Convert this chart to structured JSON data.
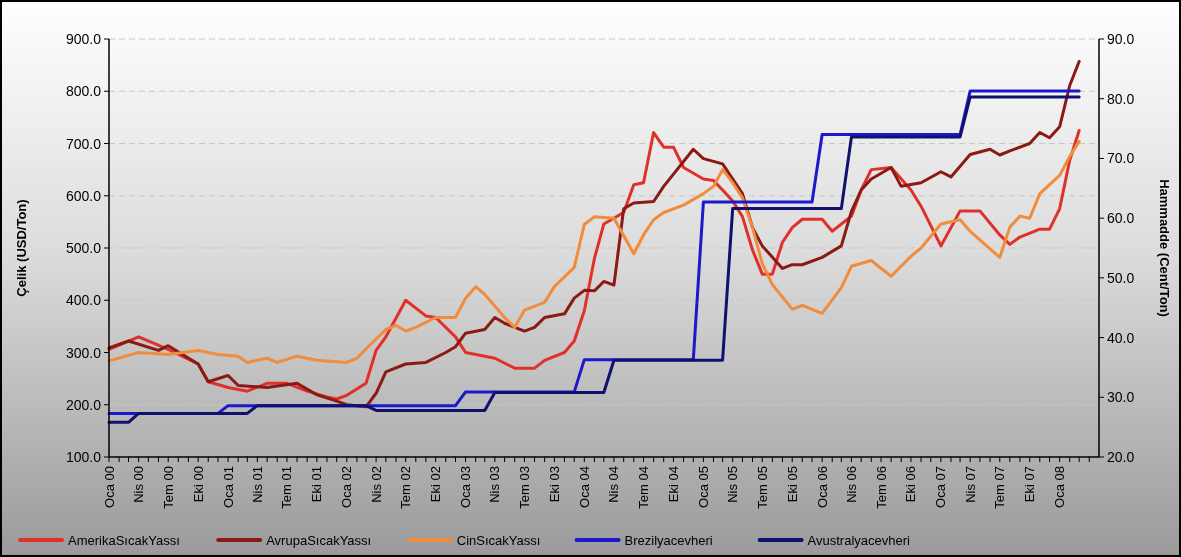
{
  "chart_data": {
    "type": "line",
    "ylabel": "Çelik (USD/Ton)",
    "y2label": "Hammadde (Cent/Ton)",
    "xlim": [
      "2000-01",
      "2008-05"
    ],
    "ylim": [
      100,
      900
    ],
    "y2lim": [
      20,
      90
    ],
    "yticks": [
      {
        "value": 100,
        "label": "100.0"
      },
      {
        "value": 200,
        "label": "200.0"
      },
      {
        "value": 300,
        "label": "300.0"
      },
      {
        "value": 400,
        "label": "400.0"
      },
      {
        "value": 500,
        "label": "500.0"
      },
      {
        "value": 600,
        "label": "600.0"
      },
      {
        "value": 700,
        "label": "700.0"
      },
      {
        "value": 800,
        "label": "800.0"
      },
      {
        "value": 900,
        "label": "900.0"
      }
    ],
    "y2ticks": [
      {
        "value": 20,
        "label": "20.0"
      },
      {
        "value": 30,
        "label": "30.0"
      },
      {
        "value": 40,
        "label": "40.0"
      },
      {
        "value": 50,
        "label": "50.0"
      },
      {
        "value": 60,
        "label": "60.0"
      },
      {
        "value": 70,
        "label": "70.0"
      },
      {
        "value": 80,
        "label": "80.0"
      },
      {
        "value": 90,
        "label": "90.0"
      }
    ],
    "xticks": [
      {
        "value": "2000-01",
        "label": "Oca 00"
      },
      {
        "value": "2000-02",
        "label": null
      },
      {
        "value": "2000-03",
        "label": null
      },
      {
        "value": "2000-04",
        "label": "Nis 00"
      },
      {
        "value": "2000-05",
        "label": null
      },
      {
        "value": "2000-06",
        "label": null
      },
      {
        "value": "2000-07",
        "label": "Tem 00"
      },
      {
        "value": "2000-08",
        "label": null
      },
      {
        "value": "2000-09",
        "label": null
      },
      {
        "value": "2000-10",
        "label": "Eki 00"
      },
      {
        "value": "2000-11",
        "label": null
      },
      {
        "value": "2000-12",
        "label": null
      },
      {
        "value": "2001-01",
        "label": "Oca 01"
      },
      {
        "value": "2001-02",
        "label": null
      },
      {
        "value": "2001-03",
        "label": null
      },
      {
        "value": "2001-04",
        "label": "Nis 01"
      },
      {
        "value": "2001-05",
        "label": null
      },
      {
        "value": "2001-06",
        "label": null
      },
      {
        "value": "2001-07",
        "label": "Tem 01"
      },
      {
        "value": "2001-08",
        "label": null
      },
      {
        "value": "2001-09",
        "label": null
      },
      {
        "value": "2001-10",
        "label": "Eki 01"
      },
      {
        "value": "2001-11",
        "label": null
      },
      {
        "value": "2001-12",
        "label": null
      },
      {
        "value": "2002-01",
        "label": "Oca 02"
      },
      {
        "value": "2002-02",
        "label": null
      },
      {
        "value": "2002-03",
        "label": null
      },
      {
        "value": "2002-04",
        "label": "Nis 02"
      },
      {
        "value": "2002-05",
        "label": null
      },
      {
        "value": "2002-06",
        "label": null
      },
      {
        "value": "2002-07",
        "label": "Tem 02"
      },
      {
        "value": "2002-08",
        "label": null
      },
      {
        "value": "2002-09",
        "label": null
      },
      {
        "value": "2002-10",
        "label": "Eki 02"
      },
      {
        "value": "2002-11",
        "label": null
      },
      {
        "value": "2002-12",
        "label": null
      },
      {
        "value": "2003-01",
        "label": "Oca 03"
      },
      {
        "value": "2003-02",
        "label": null
      },
      {
        "value": "2003-03",
        "label": null
      },
      {
        "value": "2003-04",
        "label": "Nis 03"
      },
      {
        "value": "2003-05",
        "label": null
      },
      {
        "value": "2003-06",
        "label": null
      },
      {
        "value": "2003-07",
        "label": "Tem 03"
      },
      {
        "value": "2003-08",
        "label": null
      },
      {
        "value": "2003-09",
        "label": null
      },
      {
        "value": "2003-10",
        "label": "Eki 03"
      },
      {
        "value": "2003-11",
        "label": null
      },
      {
        "value": "2003-12",
        "label": null
      },
      {
        "value": "2004-01",
        "label": "Oca 04"
      },
      {
        "value": "2004-02",
        "label": null
      },
      {
        "value": "2004-03",
        "label": null
      },
      {
        "value": "2004-04",
        "label": "Nis 04"
      },
      {
        "value": "2004-05",
        "label": null
      },
      {
        "value": "2004-06",
        "label": null
      },
      {
        "value": "2004-07",
        "label": "Tem 04"
      },
      {
        "value": "2004-08",
        "label": null
      },
      {
        "value": "2004-09",
        "label": null
      },
      {
        "value": "2004-10",
        "label": "Eki 04"
      },
      {
        "value": "2004-11",
        "label": null
      },
      {
        "value": "2004-12",
        "label": null
      },
      {
        "value": "2005-01",
        "label": "Oca 05"
      },
      {
        "value": "2005-02",
        "label": null
      },
      {
        "value": "2005-03",
        "label": null
      },
      {
        "value": "2005-04",
        "label": "Nis 05"
      },
      {
        "value": "2005-05",
        "label": null
      },
      {
        "value": "2005-06",
        "label": null
      },
      {
        "value": "2005-07",
        "label": "Tem 05"
      },
      {
        "value": "2005-08",
        "label": null
      },
      {
        "value": "2005-09",
        "label": null
      },
      {
        "value": "2005-10",
        "label": "Eki 05"
      },
      {
        "value": "2005-11",
        "label": null
      },
      {
        "value": "2005-12",
        "label": null
      },
      {
        "value": "2006-01",
        "label": "Oca 06"
      },
      {
        "value": "2006-02",
        "label": null
      },
      {
        "value": "2006-03",
        "label": null
      },
      {
        "value": "2006-04",
        "label": "Nis 06"
      },
      {
        "value": "2006-05",
        "label": null
      },
      {
        "value": "2006-06",
        "label": null
      },
      {
        "value": "2006-07",
        "label": "Tem 06"
      },
      {
        "value": "2006-08",
        "label": null
      },
      {
        "value": "2006-09",
        "label": null
      },
      {
        "value": "2006-10",
        "label": "Eki 06"
      },
      {
        "value": "2006-11",
        "label": null
      },
      {
        "value": "2006-12",
        "label": null
      },
      {
        "value": "2007-01",
        "label": "Oca 07"
      },
      {
        "value": "2007-02",
        "label": null
      },
      {
        "value": "2007-03",
        "label": null
      },
      {
        "value": "2007-04",
        "label": "Nis 07"
      },
      {
        "value": "2007-05",
        "label": null
      },
      {
        "value": "2007-06",
        "label": null
      },
      {
        "value": "2007-07",
        "label": "Tem 07"
      },
      {
        "value": "2007-08",
        "label": null
      },
      {
        "value": "2007-09",
        "label": null
      },
      {
        "value": "2007-10",
        "label": "Eki 07"
      },
      {
        "value": "2007-11",
        "label": null
      },
      {
        "value": "2007-12",
        "label": null
      },
      {
        "value": "2008-01",
        "label": "Oca 08"
      },
      {
        "value": "2008-02",
        "label": null
      },
      {
        "value": "2008-03",
        "label": null
      },
      {
        "value": "2008-04",
        "label": null
      }
    ],
    "grid": "y",
    "legend": "bottom",
    "series": [
      {
        "name": "AmerikaSıcakYassı",
        "color": "#e0302a",
        "x": [
          "2000-01",
          "2000-04",
          "2000-07",
          "2000-10",
          "2000-11",
          "2001-01",
          "2001-03",
          "2001-05",
          "2001-07",
          "2001-09",
          "2001-11",
          "2001-12",
          "2002-01",
          "2002-03",
          "2002-04",
          "2002-05",
          "2002-07",
          "2002-09",
          "2002-10",
          "2002-12",
          "2003-01",
          "2003-03",
          "2003-04",
          "2003-06",
          "2003-08",
          "2003-09",
          "2003-11",
          "2003-12",
          "2004-01",
          "2004-02",
          "2004-03",
          "2004-05",
          "2004-06",
          "2004-07",
          "2004-08",
          "2004-09",
          "2004-10",
          "2004-11",
          "2005-01",
          "2005-02",
          "2005-03",
          "2005-04",
          "2005-05",
          "2005-06",
          "2005-07",
          "2005-08",
          "2005-09",
          "2005-10",
          "2005-11",
          "2006-01",
          "2006-02",
          "2006-04",
          "2006-05",
          "2006-06",
          "2006-08",
          "2006-10",
          "2006-11",
          "2007-01",
          "2007-02",
          "2007-03",
          "2007-05",
          "2007-07",
          "2007-08",
          "2007-09",
          "2007-11",
          "2007-12",
          "2008-01",
          "2008-02",
          "2008-03"
        ],
        "values": [
          306,
          330,
          306,
          278,
          244,
          233,
          226,
          241,
          241,
          226,
          215,
          211,
          218,
          241,
          304,
          330,
          400,
          370,
          367,
          330,
          300,
          293,
          289,
          270,
          270,
          285,
          300,
          322,
          380,
          480,
          546,
          568,
          621,
          625,
          721,
          693,
          693,
          654,
          632,
          629,
          611,
          590,
          560,
          496,
          450,
          450,
          511,
          539,
          555,
          555,
          532,
          561,
          611,
          650,
          654,
          611,
          580,
          504,
          539,
          571,
          571,
          525,
          507,
          521,
          536,
          536,
          575,
          668,
          725
        ]
      },
      {
        "name": "AvrupaSıcakYassı",
        "color": "#8b1a14",
        "x": [
          "2000-01",
          "2000-03",
          "2000-06",
          "2000-07",
          "2000-10",
          "2000-11",
          "2001-01",
          "2001-02",
          "2001-05",
          "2001-08",
          "2001-10",
          "2001-12",
          "2002-01",
          "2002-03",
          "2002-04",
          "2002-05",
          "2002-07",
          "2002-09",
          "2002-11",
          "2002-12",
          "2003-01",
          "2003-03",
          "2003-04",
          "2003-05",
          "2003-07",
          "2003-08",
          "2003-09",
          "2003-11",
          "2003-12",
          "2004-01",
          "2004-02",
          "2004-03",
          "2004-04",
          "2004-05",
          "2004-06",
          "2004-08",
          "2004-09",
          "2004-12",
          "2005-01",
          "2005-03",
          "2005-05",
          "2005-06",
          "2005-07",
          "2005-09",
          "2005-10",
          "2005-11",
          "2006-01",
          "2006-03",
          "2006-04",
          "2006-05",
          "2006-06",
          "2006-08",
          "2006-09",
          "2006-11",
          "2007-01",
          "2007-02",
          "2007-04",
          "2007-06",
          "2007-07",
          "2007-08",
          "2007-10",
          "2007-11",
          "2007-12",
          "2008-01",
          "2008-02",
          "2008-03"
        ],
        "values": [
          309,
          322,
          304,
          313,
          278,
          244,
          256,
          237,
          233,
          241,
          219,
          207,
          200,
          196,
          222,
          263,
          278,
          281,
          300,
          311,
          337,
          344,
          367,
          356,
          341,
          348,
          367,
          374,
          404,
          419,
          418,
          436,
          429,
          575,
          586,
          589,
          618,
          689,
          671,
          661,
          604,
          539,
          504,
          461,
          468,
          468,
          482,
          504,
          570,
          611,
          632,
          654,
          618,
          625,
          646,
          636,
          679,
          689,
          678,
          686,
          700,
          721,
          711,
          732,
          811,
          857
        ]
      },
      {
        "name": "CinSıcakYassı",
        "color": "#f08c3c",
        "x": [
          "2000-01",
          "2000-04",
          "2000-07",
          "2000-10",
          "2000-12",
          "2001-02",
          "2001-03",
          "2001-05",
          "2001-06",
          "2001-08",
          "2001-10",
          "2002-01",
          "2002-02",
          "2002-03",
          "2002-05",
          "2002-06",
          "2002-07",
          "2002-08",
          "2002-10",
          "2002-12",
          "2003-01",
          "2003-02",
          "2003-03",
          "2003-05",
          "2003-06",
          "2003-07",
          "2003-09",
          "2003-10",
          "2003-12",
          "2004-01",
          "2004-02",
          "2004-04",
          "2004-06",
          "2004-07",
          "2004-08",
          "2004-09",
          "2004-11",
          "2005-01",
          "2005-02",
          "2005-03",
          "2005-04",
          "2005-05",
          "2005-06",
          "2005-07",
          "2005-08",
          "2005-10",
          "2005-11",
          "2006-01",
          "2006-03",
          "2006-04",
          "2006-06",
          "2006-08",
          "2006-10",
          "2006-11",
          "2007-01",
          "2007-03",
          "2007-04",
          "2007-07",
          "2007-08",
          "2007-09",
          "2007-10",
          "2007-11",
          "2008-01",
          "2008-02",
          "2008-03"
        ],
        "values": [
          284,
          300,
          296,
          304,
          296,
          293,
          281,
          289,
          281,
          293,
          285,
          281,
          289,
          307,
          344,
          352,
          341,
          348,
          367,
          367,
          404,
          426,
          411,
          367,
          348,
          381,
          396,
          426,
          463,
          545,
          560,
          557,
          489,
          525,
          554,
          568,
          582,
          604,
          618,
          650,
          625,
          596,
          539,
          470,
          430,
          383,
          390,
          375,
          424,
          465,
          476,
          446,
          484,
          500,
          546,
          554,
          532,
          482,
          540,
          561,
          557,
          604,
          639,
          675,
          704
        ]
      },
      {
        "name": "Brezilyacevheri",
        "color": "#1a1acc",
        "axis": "y2",
        "x": [
          "2000-01",
          "2000-12",
          "2001-01",
          "2002-12",
          "2003-01",
          "2003-12",
          "2004-01",
          "2004-12",
          "2005-01",
          "2005-12",
          "2006-01",
          "2007-03",
          "2007-04",
          "2008-03"
        ],
        "values": [
          27.3,
          27.3,
          28.6,
          28.6,
          30.9,
          30.9,
          36.3,
          36.3,
          62.7,
          62.7,
          74.0,
          74.0,
          81.3,
          81.3
        ]
      },
      {
        "name": "Avustralyacevheri",
        "color": "#10106e",
        "axis": "y2",
        "x": [
          "2000-01",
          "2000-03",
          "2000-04",
          "2001-03",
          "2001-04",
          "2002-03",
          "2002-04",
          "2003-03",
          "2003-04",
          "2004-03",
          "2004-04",
          "2005-03",
          "2005-04",
          "2006-03",
          "2006-04",
          "2007-03",
          "2007-04",
          "2008-03"
        ],
        "values": [
          25.8,
          25.8,
          27.3,
          27.3,
          28.6,
          28.6,
          27.8,
          27.8,
          30.8,
          30.8,
          36.2,
          36.2,
          61.6,
          61.6,
          73.6,
          73.6,
          80.3,
          80.3
        ]
      }
    ]
  }
}
